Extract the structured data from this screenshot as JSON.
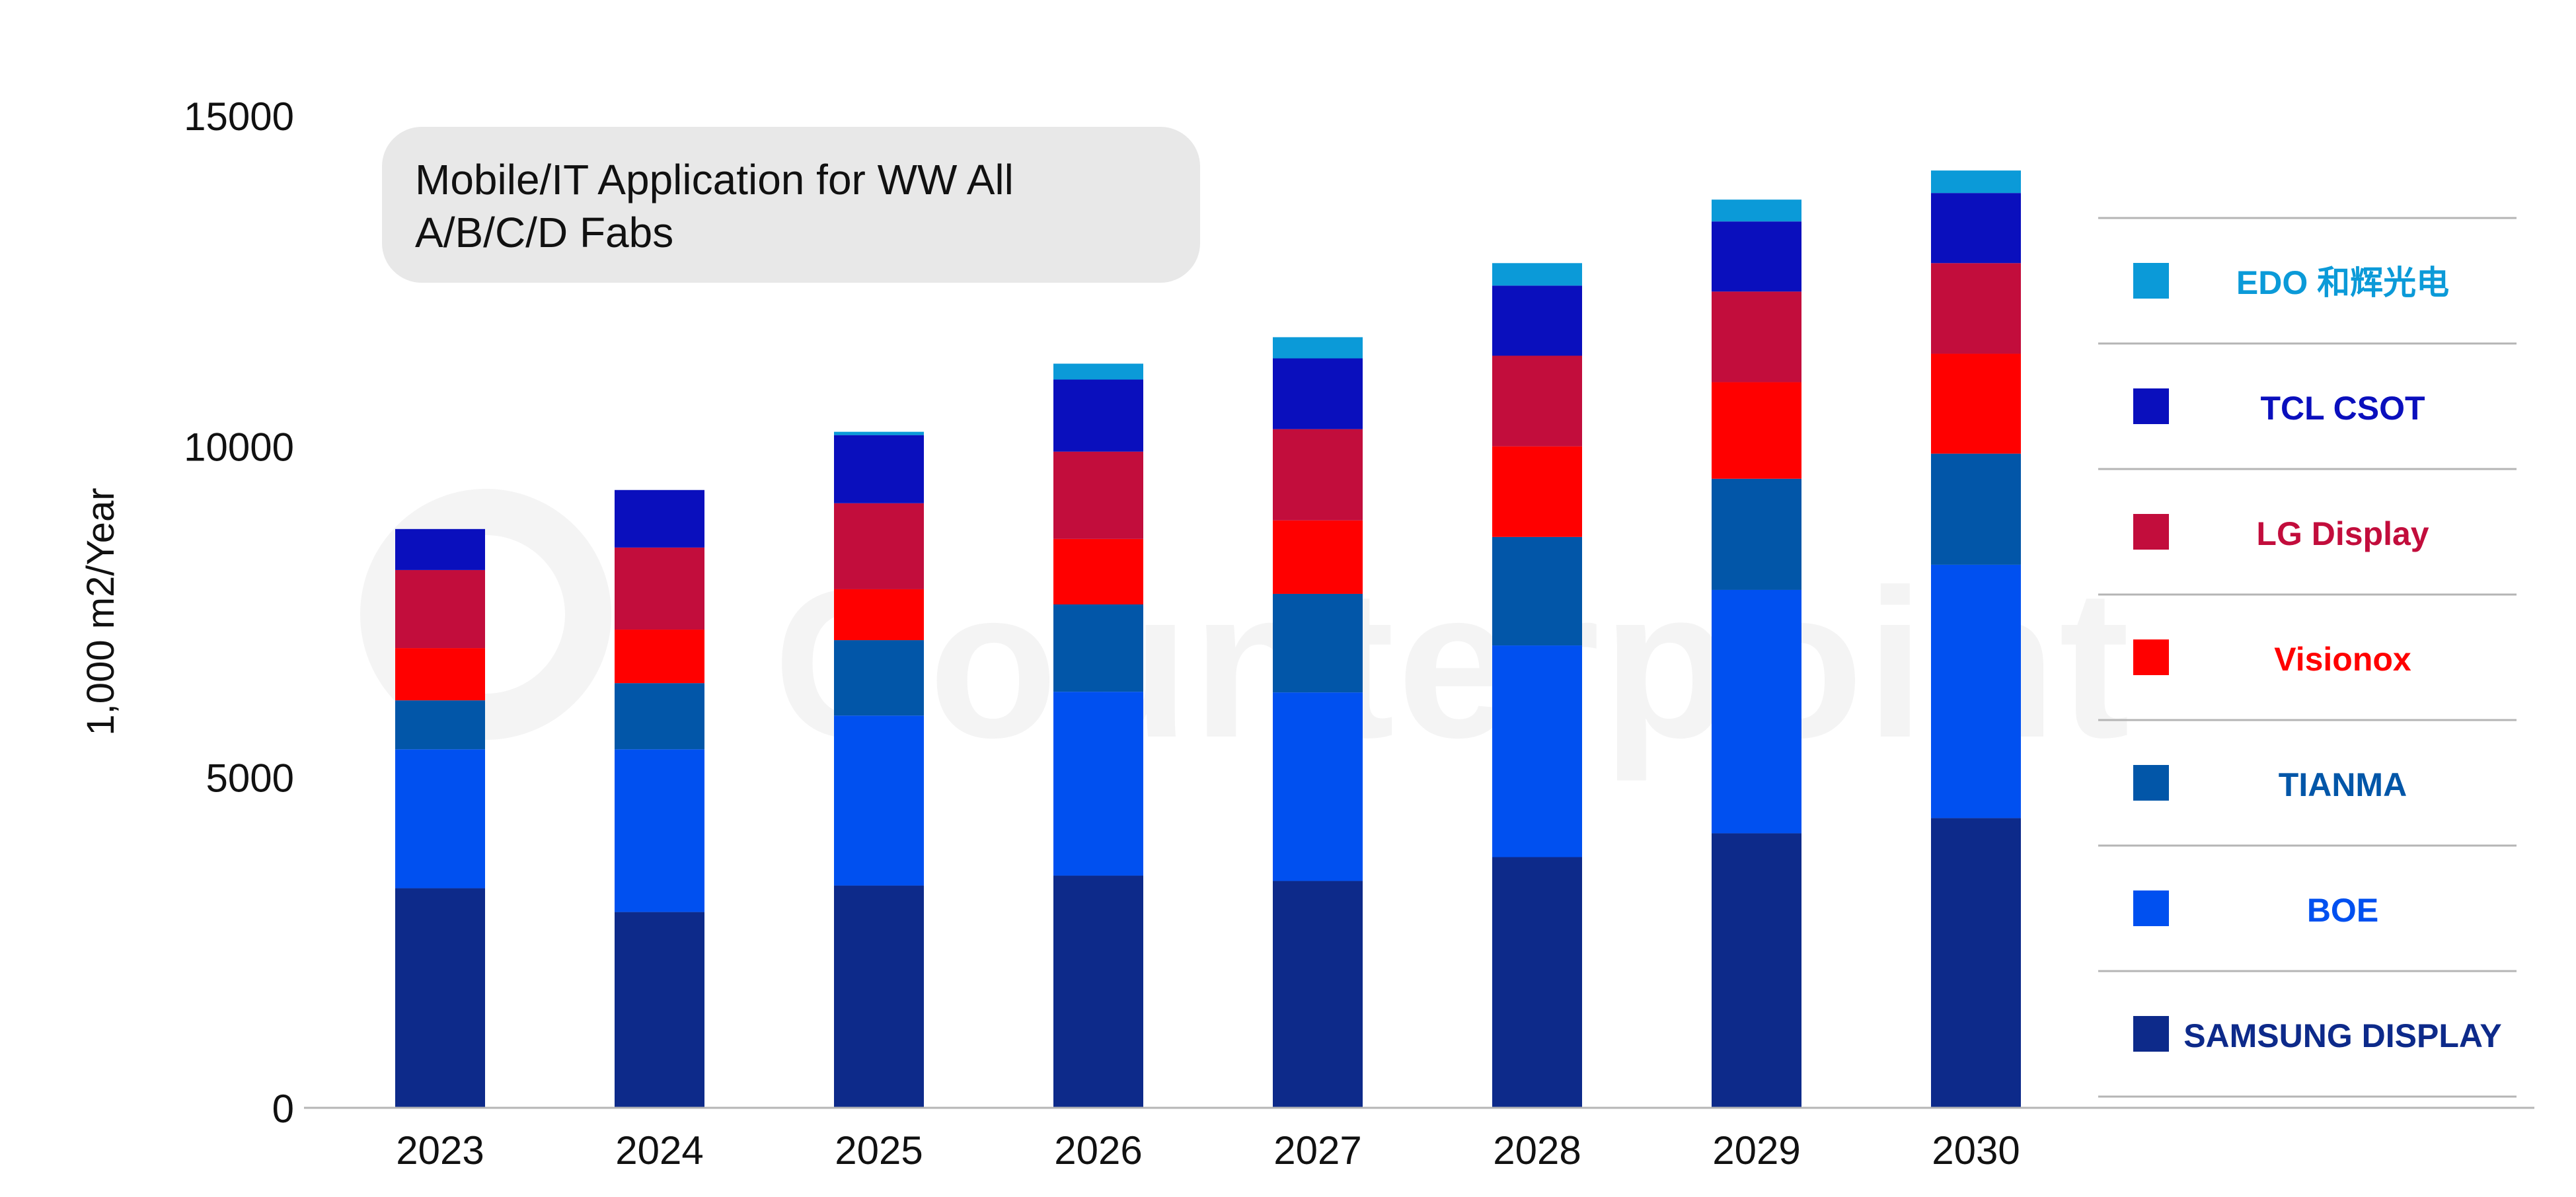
{
  "chart_data": {
    "type": "bar",
    "stacked": true,
    "title": "Mobile/IT Application for WW All A/B/C/D Fabs",
    "ylabel": "1,000 m2/Year",
    "xlabel": "",
    "ylim": [
      0,
      15000
    ],
    "yticks": [
      0,
      5000,
      10000,
      15000
    ],
    "categories": [
      "2023",
      "2024",
      "2025",
      "2026",
      "2027",
      "2028",
      "2029",
      "2030"
    ],
    "legend_position": "right",
    "watermark": "Counterpoint",
    "series": [
      {
        "name": "SAMSUNG DISPLAY",
        "color": "#0d2a8a",
        "values": [
          3320,
          2960,
          3360,
          3510,
          3430,
          3790,
          4150,
          4380
        ]
      },
      {
        "name": "BOE",
        "color": "#0050f0",
        "values": [
          2100,
          2460,
          2570,
          2780,
          2850,
          3200,
          3680,
          3830
        ]
      },
      {
        "name": "TIANMA",
        "color": "#0256a8",
        "values": [
          740,
          1000,
          1140,
          1320,
          1490,
          1640,
          1680,
          1680
        ]
      },
      {
        "name": "Visionox",
        "color": "#ff0000",
        "values": [
          790,
          810,
          770,
          990,
          1110,
          1370,
          1460,
          1510
        ]
      },
      {
        "name": "LG Display",
        "color": "#c20d3c",
        "values": [
          1180,
          1240,
          1300,
          1320,
          1380,
          1370,
          1370,
          1370
        ]
      },
      {
        "name": "TCL CSOT",
        "color": "#0a0fbd",
        "values": [
          620,
          870,
          1030,
          1090,
          1070,
          1060,
          1060,
          1060
        ]
      },
      {
        "name": "EDO 和辉光电",
        "color": "#0b9ad8",
        "values": [
          0,
          0,
          50,
          240,
          320,
          340,
          330,
          340
        ]
      }
    ]
  }
}
